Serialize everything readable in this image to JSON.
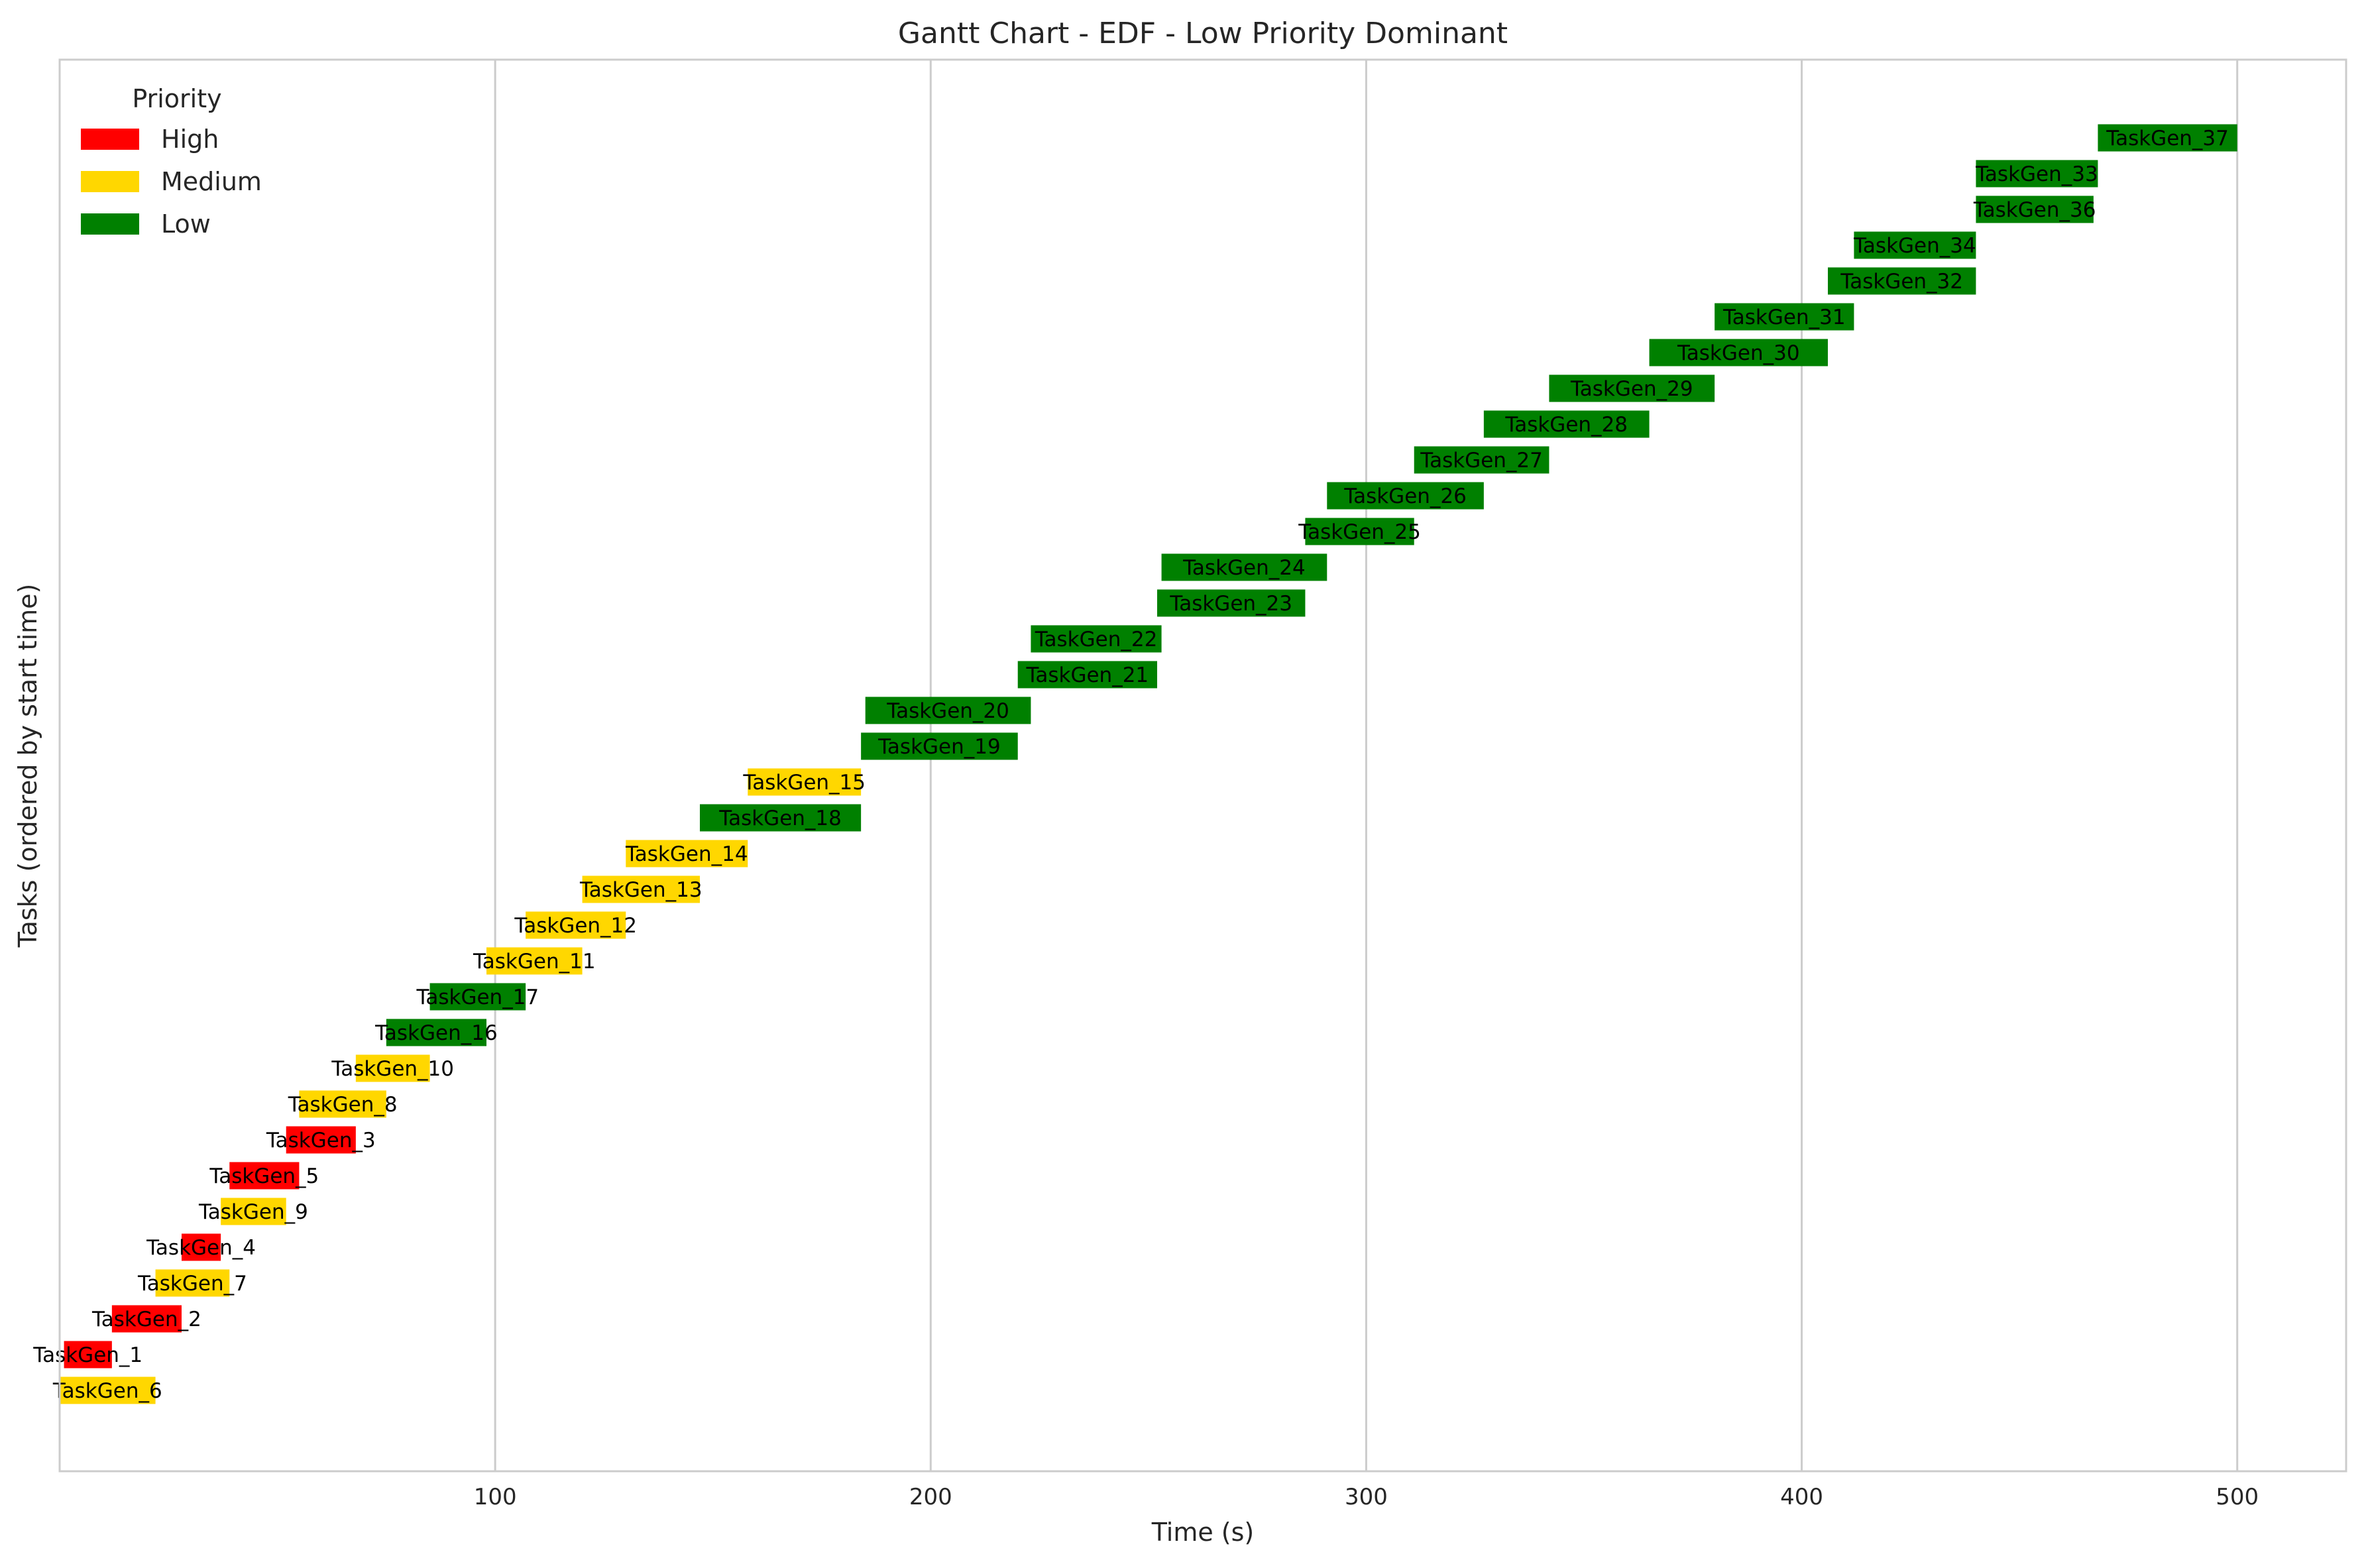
{
  "chart_data": {
    "type": "gantt",
    "title": "Gantt Chart - EDF - Low Priority Dominant",
    "xlabel": "Time (s)",
    "ylabel": "Tasks (ordered by start time)",
    "xlim": [
      0,
      525
    ],
    "xticks": [
      100,
      200,
      300,
      400,
      500
    ],
    "grid": "vertical",
    "legend": {
      "title": "Priority",
      "placement": "top-left",
      "entries": [
        {
          "label": "High",
          "color": "#ff0000"
        },
        {
          "label": "Medium",
          "color": "#ffd700"
        },
        {
          "label": "Low",
          "color": "#008000"
        }
      ]
    },
    "tasks": [
      {
        "name": "TaskGen_6",
        "priority": "Medium",
        "start": 0,
        "end": 22
      },
      {
        "name": "TaskGen_1",
        "priority": "High",
        "start": 1,
        "end": 12
      },
      {
        "name": "TaskGen_2",
        "priority": "High",
        "start": 12,
        "end": 28
      },
      {
        "name": "TaskGen_7",
        "priority": "Medium",
        "start": 22,
        "end": 39
      },
      {
        "name": "TaskGen_4",
        "priority": "High",
        "start": 28,
        "end": 37
      },
      {
        "name": "TaskGen_9",
        "priority": "Medium",
        "start": 37,
        "end": 52
      },
      {
        "name": "TaskGen_5",
        "priority": "High",
        "start": 39,
        "end": 55
      },
      {
        "name": "TaskGen_3",
        "priority": "High",
        "start": 52,
        "end": 68
      },
      {
        "name": "TaskGen_8",
        "priority": "Medium",
        "start": 55,
        "end": 75
      },
      {
        "name": "TaskGen_10",
        "priority": "Medium",
        "start": 68,
        "end": 85
      },
      {
        "name": "TaskGen_16",
        "priority": "Low",
        "start": 75,
        "end": 98
      },
      {
        "name": "TaskGen_17",
        "priority": "Low",
        "start": 85,
        "end": 107
      },
      {
        "name": "TaskGen_11",
        "priority": "Medium",
        "start": 98,
        "end": 120
      },
      {
        "name": "TaskGen_12",
        "priority": "Medium",
        "start": 107,
        "end": 130
      },
      {
        "name": "TaskGen_13",
        "priority": "Medium",
        "start": 120,
        "end": 147
      },
      {
        "name": "TaskGen_14",
        "priority": "Medium",
        "start": 130,
        "end": 158
      },
      {
        "name": "TaskGen_18",
        "priority": "Low",
        "start": 147,
        "end": 184
      },
      {
        "name": "TaskGen_15",
        "priority": "Medium",
        "start": 158,
        "end": 184
      },
      {
        "name": "TaskGen_19",
        "priority": "Low",
        "start": 184,
        "end": 220
      },
      {
        "name": "TaskGen_20",
        "priority": "Low",
        "start": 185,
        "end": 223
      },
      {
        "name": "TaskGen_21",
        "priority": "Low",
        "start": 220,
        "end": 252
      },
      {
        "name": "TaskGen_22",
        "priority": "Low",
        "start": 223,
        "end": 253
      },
      {
        "name": "TaskGen_23",
        "priority": "Low",
        "start": 252,
        "end": 286
      },
      {
        "name": "TaskGen_24",
        "priority": "Low",
        "start": 253,
        "end": 291
      },
      {
        "name": "TaskGen_25",
        "priority": "Low",
        "start": 286,
        "end": 311
      },
      {
        "name": "TaskGen_26",
        "priority": "Low",
        "start": 291,
        "end": 327
      },
      {
        "name": "TaskGen_27",
        "priority": "Low",
        "start": 311,
        "end": 342
      },
      {
        "name": "TaskGen_28",
        "priority": "Low",
        "start": 327,
        "end": 365
      },
      {
        "name": "TaskGen_29",
        "priority": "Low",
        "start": 342,
        "end": 380
      },
      {
        "name": "TaskGen_30",
        "priority": "Low",
        "start": 365,
        "end": 406
      },
      {
        "name": "TaskGen_31",
        "priority": "Low",
        "start": 380,
        "end": 412
      },
      {
        "name": "TaskGen_32",
        "priority": "Low",
        "start": 406,
        "end": 440
      },
      {
        "name": "TaskGen_34",
        "priority": "Low",
        "start": 412,
        "end": 440
      },
      {
        "name": "TaskGen_36",
        "priority": "Low",
        "start": 440,
        "end": 467
      },
      {
        "name": "TaskGen_33",
        "priority": "Low",
        "start": 440,
        "end": 468
      },
      {
        "name": "TaskGen_37",
        "priority": "Low",
        "start": 468,
        "end": 500
      }
    ]
  }
}
